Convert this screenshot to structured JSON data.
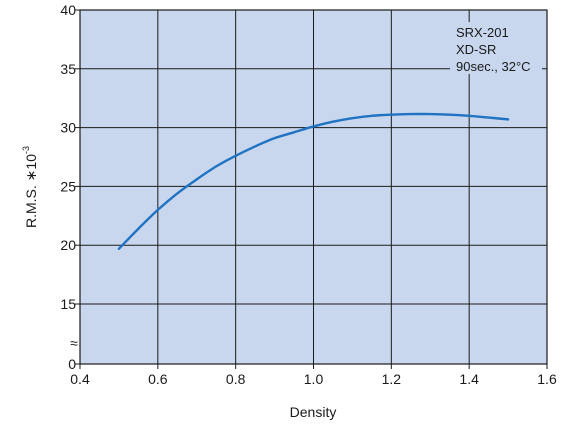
{
  "chart_data": {
    "type": "line",
    "xlabel": "Density",
    "ylabel_main": "R.M.S. ∗",
    "ylabel_exp": "10",
    "ylabel_exp_power": "-3",
    "xlim": [
      0.4,
      1.6
    ],
    "ylim": [
      0,
      40
    ],
    "axis_break": true,
    "axis_break_symbol": "≈",
    "grid": true,
    "background_color": "#c9d7ee",
    "line_color": "#1f73c2",
    "x_ticks": [
      0.4,
      0.6,
      0.8,
      1.0,
      1.2,
      1.4,
      1.6
    ],
    "x_tick_labels": [
      "0.4",
      "0.6",
      "0.8",
      "1.0",
      "1.2",
      "1.4",
      "1.6"
    ],
    "y_ticks": [
      0,
      15,
      20,
      25,
      30,
      35,
      40
    ],
    "y_tick_labels": [
      "0",
      "15",
      "20",
      "25",
      "30",
      "35",
      "40"
    ],
    "annotations": [
      "SRX-201",
      "XD-SR",
      "90sec., 32°C"
    ],
    "annotation_position": "top-right",
    "series": [
      {
        "x": [
          0.5,
          0.55,
          0.6,
          0.65,
          0.7,
          0.75,
          0.8,
          0.85,
          0.9,
          0.95,
          1.0,
          1.05,
          1.1,
          1.15,
          1.2,
          1.25,
          1.3,
          1.35,
          1.4,
          1.45,
          1.5
        ],
        "y": [
          19.7,
          21.4,
          23.0,
          24.4,
          25.6,
          26.7,
          27.6,
          28.4,
          29.1,
          29.6,
          30.1,
          30.5,
          30.8,
          31.0,
          31.1,
          31.15,
          31.15,
          31.1,
          31.0,
          30.85,
          30.7
        ]
      }
    ]
  }
}
